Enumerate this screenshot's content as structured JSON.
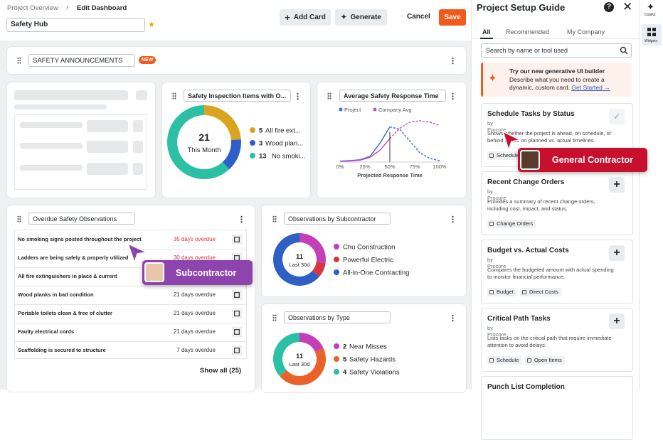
{
  "breadcrumb": {
    "parent": "Project Overview",
    "current": "Edit Dashboard"
  },
  "dashboard_name": "Safety Hub",
  "toolbar": {
    "add_card": "Add Card",
    "generate": "Generate",
    "cancel": "Cancel",
    "save": "Save"
  },
  "announcements": {
    "title": "SAFETY ANNOUNCEMENTS",
    "badge": "NEW"
  },
  "chart_data": [
    {
      "type": "donut",
      "title": "Safety Inspection Items with O...",
      "center_value": 21,
      "center_label": "This Month",
      "categories": [
        "All fire ext...",
        "Wood plan...",
        "No smoki..."
      ],
      "values": [
        5,
        3,
        13
      ],
      "colors": [
        "#d9a521",
        "#2f5fc9",
        "#2bbfa4"
      ],
      "show_values": true
    },
    {
      "type": "line",
      "title": "Average Safety Response Time",
      "x": [
        0,
        10,
        20,
        30,
        40,
        50,
        60,
        70,
        80,
        90,
        100
      ],
      "series": [
        {
          "name": "Project",
          "color": "#3c6fd8",
          "values": [
            2,
            3,
            5,
            12,
            40,
            75,
            70,
            45,
            20,
            8,
            3
          ]
        },
        {
          "name": "Company Avg",
          "color": "#c44fc4",
          "values": [
            1,
            2,
            4,
            10,
            25,
            50,
            72,
            85,
            88,
            85,
            78
          ]
        }
      ],
      "xlim": [
        0,
        100
      ],
      "ylim": [
        0,
        100
      ],
      "xticks": [
        {
          "value": 0,
          "label": "0%"
        },
        {
          "value": 25,
          "label": "25%"
        },
        {
          "value": 50,
          "label": "50%"
        },
        {
          "value": 75,
          "label": "75%"
        },
        {
          "value": 100,
          "label": "100%"
        }
      ],
      "xlabel": "Projected Response Time",
      "projected_from": 50
    },
    {
      "type": "donut",
      "title": "Observations by Subcontractor",
      "center_value": 11,
      "center_label": "Last 30d",
      "categories": [
        "Chu Construction",
        "Powerful Electric",
        "All-in-One Contracting"
      ],
      "values": [
        3,
        1,
        7
      ],
      "colors": [
        "#c23fb8",
        "#d8353f",
        "#2d5fc4"
      ],
      "show_values": false
    },
    {
      "type": "donut",
      "title": "Observations by Type",
      "center_value": 11,
      "center_label": "Last 30d",
      "categories": [
        "Near Misses",
        "Safety Hazards",
        "Safety Violations"
      ],
      "values": [
        2,
        5,
        4
      ],
      "colors": [
        "#c23fb8",
        "#e8622a",
        "#2bbfa4"
      ],
      "show_values": true
    }
  ],
  "overdue": {
    "title": "Overdue Safety Observations",
    "rows": [
      {
        "item": "No smoking signs posted throughout the project",
        "status": "35 days overdue",
        "urgent": true
      },
      {
        "item": "Ladders are being safely & properly utilized",
        "status": "30 days overdue",
        "urgent": true
      },
      {
        "item": "All fire extinguishers in place & current"
      },
      {
        "item": "Wood planks in bad condition",
        "status": "21 days overdue",
        "urgent": false
      },
      {
        "item": "Portable toilets clean & free of clutter",
        "status": "21 days overdue",
        "urgent": false
      },
      {
        "item": "Faulty electrical cords",
        "status": "21 days overdue",
        "urgent": false
      },
      {
        "item": "Scaffolding is secured to structure",
        "status": "7 days overdue",
        "urgent": false
      }
    ],
    "show_all": "Show all (25)"
  },
  "guide": {
    "title": "Project Setup Guide",
    "tabs": [
      "All",
      "Recommended",
      "My Company"
    ],
    "search_placeholder": "Search by name or tool used",
    "promo": {
      "title": "Try our new generative UI builder",
      "text": "Describe what you need to create a dynamic, custom card.",
      "link": "Get Started →"
    },
    "cards": [
      {
        "title": "Schedule Tasks by Status",
        "source": "by Procore",
        "description": "Shows whether the project is ahead, on schedule, or behind based on planned vs. actual timelines.",
        "tags": [
          "Schedule"
        ],
        "added": true
      },
      {
        "title": "Recent Change Orders",
        "source": "by Procore",
        "description": "Provides a summary of recent change orders, including cost, impact, and status.",
        "tags": [
          "Change Orders"
        ],
        "added": false
      },
      {
        "title": "Budget vs. Actual Costs",
        "source": "by Procore",
        "description": "Compares the budgeted amount with actual spending to monitor financial performance.",
        "tags": [
          "Budget",
          "Direct Costs"
        ],
        "added": false
      },
      {
        "title": "Critical Path Tasks",
        "source": "by Procore",
        "description": "Lists tasks on the critical path that require immediate attention to avoid delays.",
        "tags": [
          "Schedule",
          "Open Items"
        ],
        "added": false
      },
      {
        "title": "Punch List Completion"
      }
    ]
  },
  "sidebar": {
    "copilot": "Copilot",
    "widgets": "Widgets"
  },
  "overlays": {
    "general_contractor": "General Contractor",
    "subcontractor": "Subcontractor"
  }
}
